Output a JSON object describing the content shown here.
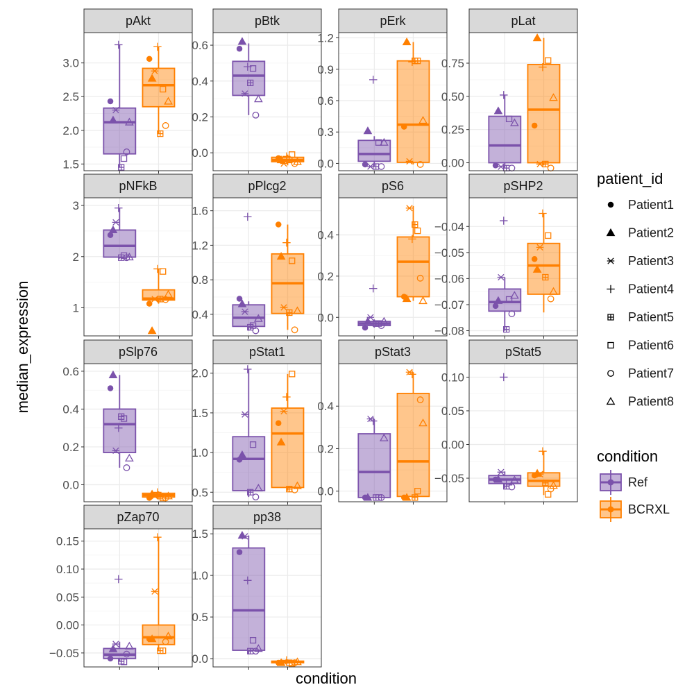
{
  "figure": {
    "xlabel": "condition",
    "ylabel": "median_expression"
  },
  "colors": {
    "Ref": "#7B52AB",
    "BCRXL": "#FF8000",
    "strip_bg": "#D9D9D9",
    "point": "#000000"
  },
  "legend": {
    "patient_title": "patient_id",
    "patients": [
      {
        "label": "Patient1",
        "shape": "filled-circle"
      },
      {
        "label": "Patient2",
        "shape": "filled-triangle"
      },
      {
        "label": "Patient3",
        "shape": "asterisk"
      },
      {
        "label": "Patient4",
        "shape": "plus"
      },
      {
        "label": "Patient5",
        "shape": "square-plus"
      },
      {
        "label": "Patient6",
        "shape": "open-square"
      },
      {
        "label": "Patient7",
        "shape": "open-circle"
      },
      {
        "label": "Patient8",
        "shape": "open-triangle"
      }
    ],
    "condition_title": "condition",
    "conditions": [
      {
        "label": "Ref",
        "key": "Ref"
      },
      {
        "label": "BCRXL",
        "key": "BCRXL"
      }
    ]
  },
  "chart_data": {
    "type": "box",
    "facet_by": "marker",
    "x": [
      "Ref",
      "BCRXL"
    ],
    "panels": [
      {
        "title": "pAkt",
        "ylim": [
          1.4,
          3.45
        ],
        "ticks": [
          1.5,
          2.0,
          2.5,
          3.0
        ],
        "tick_labels": [
          "1.5",
          "2.0",
          "2.5",
          "3.0"
        ],
        "box": {
          "Ref": [
            1.45,
            1.65,
            2.12,
            2.33,
            3.27
          ],
          "BCRXL": [
            1.95,
            2.35,
            2.67,
            2.92,
            3.24
          ]
        },
        "points": {
          "Ref": [
            2.43,
            2.15,
            2.3,
            3.27,
            1.45,
            1.58,
            1.68,
            2.12
          ],
          "BCRXL": [
            3.06,
            2.77,
            2.88,
            3.24,
            1.95,
            2.61,
            2.07,
            2.43
          ]
        }
      },
      {
        "title": "pBtk",
        "ylim": [
          -0.1,
          0.67
        ],
        "ticks": [
          0.0,
          0.2,
          0.4,
          0.6
        ],
        "tick_labels": [
          "0.0",
          "0.2",
          "0.4",
          "0.6"
        ],
        "box": {
          "Ref": [
            0.21,
            0.32,
            0.43,
            0.51,
            0.61
          ],
          "BCRXL": [
            -0.07,
            -0.05,
            -0.04,
            -0.025,
            -0.01
          ]
        },
        "points": {
          "Ref": [
            0.58,
            0.62,
            0.33,
            0.48,
            0.39,
            0.47,
            0.21,
            0.3
          ],
          "BCRXL": [
            -0.03,
            -0.04,
            -0.06,
            -0.02,
            -0.04,
            -0.01,
            -0.06,
            -0.05
          ]
        }
      },
      {
        "title": "pErk",
        "ylim": [
          -0.07,
          1.25
        ],
        "ticks": [
          0.0,
          0.3,
          0.6,
          0.9,
          1.2
        ],
        "tick_labels": [
          "0.0",
          "0.3",
          "0.6",
          "0.9",
          "1.2"
        ],
        "box": {
          "Ref": [
            -0.03,
            0.02,
            0.09,
            0.22,
            0.26
          ],
          "BCRXL": [
            -0.01,
            0.01,
            0.37,
            0.98,
            1.16
          ]
        },
        "points": {
          "Ref": [
            -0.01,
            0.31,
            -0.03,
            0.8,
            -0.03,
            0.2,
            -0.03,
            0.2
          ],
          "BCRXL": [
            0.35,
            1.16,
            0.02,
            0.97,
            0.98,
            0.98,
            -0.01,
            0.41
          ]
        }
      },
      {
        "title": "pLat",
        "ylim": [
          -0.06,
          0.98
        ],
        "ticks": [
          0.0,
          0.25,
          0.5,
          0.75
        ],
        "tick_labels": [
          "0.00",
          "0.25",
          "0.50",
          "0.75"
        ],
        "box": {
          "Ref": [
            -0.04,
            0.0,
            0.13,
            0.35,
            0.51
          ],
          "BCRXL": [
            -0.02,
            0.0,
            0.4,
            0.74,
            0.94
          ]
        },
        "points": {
          "Ref": [
            -0.02,
            0.39,
            -0.03,
            0.51,
            -0.04,
            0.33,
            -0.04,
            0.3
          ],
          "BCRXL": [
            0.28,
            0.94,
            -0.01,
            0.72,
            -0.01,
            0.77,
            -0.04,
            0.49
          ]
        }
      },
      {
        "title": "pNFkB",
        "ylim": [
          0.45,
          3.15
        ],
        "ticks": [
          1,
          2,
          3
        ],
        "tick_labels": [
          "1",
          "2",
          "3"
        ],
        "box": {
          "Ref": [
            1.96,
            1.99,
            2.21,
            2.52,
            2.95
          ],
          "BCRXL": [
            1.08,
            1.15,
            1.18,
            1.35,
            1.76
          ]
        },
        "points": {
          "Ref": [
            2.42,
            2.52,
            2.67,
            2.95,
            1.98,
            2.02,
            1.98,
            1.99
          ],
          "BCRXL": [
            1.08,
            0.55,
            1.17,
            1.76,
            1.17,
            1.71,
            1.16,
            1.26
          ]
        }
      },
      {
        "title": "pPlcg2",
        "ylim": [
          0.15,
          1.75
        ],
        "ticks": [
          0.4,
          0.8,
          1.2,
          1.6
        ],
        "tick_labels": [
          "0.4",
          "0.8",
          "1.2",
          "1.6"
        ],
        "box": {
          "Ref": [
            0.21,
            0.26,
            0.36,
            0.51,
            0.55
          ],
          "BCRXL": [
            0.22,
            0.41,
            0.76,
            1.1,
            1.44
          ]
        },
        "points": {
          "Ref": [
            0.58,
            0.52,
            0.43,
            1.53,
            0.25,
            0.27,
            0.21,
            0.35
          ],
          "BCRXL": [
            1.44,
            1.07,
            0.48,
            1.23,
            0.42,
            1.02,
            0.22,
            0.44
          ]
        }
      },
      {
        "title": "pS6",
        "ylim": [
          -0.09,
          0.58
        ],
        "ticks": [
          0.0,
          0.2,
          0.4
        ],
        "tick_labels": [
          "0.0",
          "0.2",
          "0.4"
        ],
        "box": {
          "Ref": [
            -0.05,
            -0.04,
            -0.03,
            -0.02,
            -0.01
          ],
          "BCRXL": [
            0.08,
            0.1,
            0.27,
            0.39,
            0.54
          ]
        },
        "points": {
          "Ref": [
            -0.05,
            -0.02,
            0.0,
            0.14,
            -0.03,
            -0.03,
            -0.04,
            -0.02
          ],
          "BCRXL": [
            0.1,
            0.09,
            0.53,
            0.38,
            0.45,
            0.42,
            0.19,
            0.08
          ]
        }
      },
      {
        "title": "pSHP2",
        "ylim": [
          -0.082,
          -0.029
        ],
        "ticks": [
          -0.08,
          -0.07,
          -0.06,
          -0.05,
          -0.04
        ],
        "tick_labels": [
          "−0.08",
          "−0.07",
          "−0.06",
          "−0.05",
          "−0.04"
        ],
        "box": {
          "Ref": [
            -0.08,
            -0.0725,
            -0.069,
            -0.064,
            -0.0595
          ],
          "BCRXL": [
            -0.073,
            -0.066,
            -0.055,
            -0.0465,
            -0.035
          ]
        },
        "points": {
          "Ref": [
            -0.0705,
            -0.0685,
            -0.0595,
            -0.0378,
            -0.0795,
            -0.068,
            -0.0735,
            -0.0665
          ],
          "BCRXL": [
            -0.0525,
            -0.0565,
            -0.048,
            -0.035,
            -0.0595,
            -0.0435,
            -0.0678,
            -0.065
          ]
        }
      },
      {
        "title": "pSlp76",
        "ylim": [
          -0.09,
          0.64
        ],
        "ticks": [
          0.0,
          0.2,
          0.4,
          0.6
        ],
        "tick_labels": [
          "0.0",
          "0.2",
          "0.4",
          "0.6"
        ],
        "box": {
          "Ref": [
            0.09,
            0.17,
            0.32,
            0.4,
            0.58
          ],
          "BCRXL": [
            -0.07,
            -0.065,
            -0.055,
            -0.045,
            -0.035
          ]
        },
        "points": {
          "Ref": [
            0.51,
            0.58,
            0.18,
            0.3,
            0.36,
            0.35,
            0.09,
            0.14
          ],
          "BCRXL": [
            -0.07,
            -0.05,
            -0.06,
            -0.04,
            -0.06,
            -0.07,
            -0.07,
            -0.06
          ]
        }
      },
      {
        "title": "pStat1",
        "ylim": [
          0.38,
          2.12
        ],
        "ticks": [
          0.5,
          1.0,
          1.5,
          2.0
        ],
        "tick_labels": [
          "0.5",
          "1.0",
          "1.5",
          "2.0"
        ],
        "box": {
          "Ref": [
            0.44,
            0.52,
            0.92,
            1.2,
            2.05
          ],
          "BCRXL": [
            0.52,
            0.56,
            1.24,
            1.56,
            1.99
          ]
        },
        "points": {
          "Ref": [
            0.91,
            0.97,
            1.48,
            2.05,
            0.5,
            1.1,
            0.44,
            0.55
          ],
          "BCRXL": [
            1.37,
            1.13,
            1.52,
            1.7,
            0.54,
            1.99,
            0.53,
            0.58
          ]
        }
      },
      {
        "title": "pStat3",
        "ylim": [
          -0.05,
          0.6
        ],
        "ticks": [
          0.0,
          0.2,
          0.4
        ],
        "tick_labels": [
          "0.0",
          "0.2",
          "0.4"
        ],
        "box": {
          "Ref": [
            -0.03,
            -0.03,
            0.09,
            0.27,
            0.34
          ],
          "BCRXL": [
            -0.03,
            -0.025,
            0.14,
            0.46,
            0.56
          ]
        },
        "points": {
          "Ref": [
            -0.03,
            -0.03,
            0.34,
            0.33,
            -0.03,
            -0.03,
            -0.03,
            0.25
          ],
          "BCRXL": [
            -0.03,
            -0.03,
            0.56,
            0.55,
            -0.03,
            0.0,
            0.43,
            0.32
          ]
        }
      },
      {
        "title": "pStat5",
        "ylim": [
          -0.085,
          0.12
        ],
        "ticks": [
          -0.05,
          0.0,
          0.05,
          0.1
        ],
        "tick_labels": [
          "−0.05",
          "0.00",
          "0.05",
          "0.10"
        ],
        "box": {
          "Ref": [
            -0.065,
            -0.058,
            -0.052,
            -0.046,
            -0.04
          ],
          "BCRXL": [
            -0.075,
            -0.062,
            -0.054,
            -0.042,
            -0.01
          ]
        },
        "points": {
          "Ref": [
            -0.052,
            -0.052,
            -0.041,
            0.1,
            -0.062,
            -0.056,
            -0.063,
            -0.053
          ],
          "BCRXL": [
            -0.046,
            -0.043,
            -0.044,
            -0.01,
            -0.057,
            -0.074,
            -0.066,
            -0.061
          ]
        }
      },
      {
        "title": "pZap70",
        "ylim": [
          -0.075,
          0.172
        ],
        "ticks": [
          -0.05,
          0.0,
          0.05,
          0.1,
          0.15
        ],
        "tick_labels": [
          "−0.05",
          "0.00",
          "0.05",
          "0.10",
          "0.15"
        ],
        "box": {
          "Ref": [
            -0.065,
            -0.06,
            -0.053,
            -0.042,
            -0.03
          ],
          "BCRXL": [
            -0.045,
            -0.035,
            -0.022,
            0.0,
            0.157
          ]
        },
        "points": {
          "Ref": [
            -0.06,
            -0.043,
            -0.034,
            0.082,
            -0.065,
            -0.066,
            -0.052,
            -0.038
          ],
          "BCRXL": [
            -0.025,
            -0.025,
            0.06,
            0.157,
            -0.046,
            -0.046,
            -0.03,
            -0.02
          ]
        }
      },
      {
        "title": "pp38",
        "ylim": [
          -0.1,
          1.56
        ],
        "ticks": [
          0.0,
          0.5,
          1.0,
          1.5
        ],
        "tick_labels": [
          "0.0",
          "0.5",
          "1.0",
          "1.5"
        ],
        "box": {
          "Ref": [
            0.05,
            0.1,
            0.58,
            1.33,
            1.48
          ],
          "BCRXL": [
            -0.06,
            -0.05,
            -0.04,
            -0.03,
            -0.01
          ]
        },
        "points": {
          "Ref": [
            1.28,
            1.48,
            1.47,
            0.94,
            0.09,
            0.22,
            0.09,
            0.12
          ],
          "BCRXL": [
            -0.05,
            -0.05,
            -0.04,
            -0.02,
            -0.05,
            -0.06,
            -0.05,
            -0.04
          ]
        }
      }
    ]
  }
}
